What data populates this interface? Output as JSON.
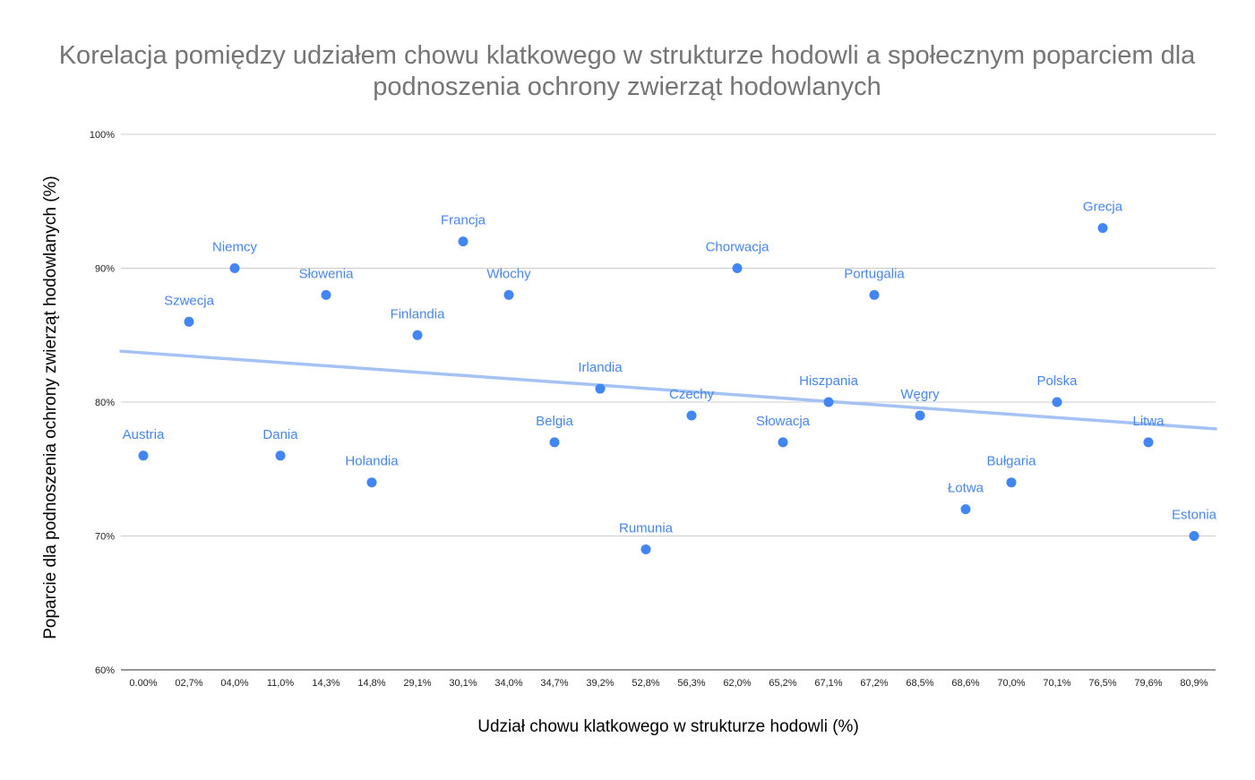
{
  "chart_data": {
    "type": "scatter",
    "title_lines": [
      "Korelacja pomiędzy udziałem chowu klatkowego w strukturze hodowli a społecznym poparciem dla",
      "podnoszenia ochrony zwierząt hodowlanych"
    ],
    "xlabel": "Udział chowu klatkowego w strukturze hodowli (%)",
    "ylabel": "Poparcie dla podnoszenia ochrony zwierząt hodowlanych (%)",
    "x_tick_labels": [
      "0.00%",
      "02,7%",
      "04,0%",
      "11,0%",
      "14,3%",
      "14,8%",
      "29,1%",
      "30,1%",
      "34,0%",
      "34,7%",
      "39,2%",
      "52,8%",
      "56,3%",
      "62,0%",
      "65,2%",
      "67,1%",
      "67,2%",
      "68,5%",
      "68,6%",
      "70,0%",
      "70,1%",
      "76,5%",
      "79,6%",
      "80,9%"
    ],
    "y_tick_labels": [
      "60%",
      "70%",
      "80%",
      "90%",
      "100%"
    ],
    "ylim": [
      60,
      100
    ],
    "y_ticks": [
      60,
      70,
      80,
      90,
      100
    ],
    "grid": true,
    "legend": "none",
    "trendline": {
      "start": 83.8,
      "end": 78.0
    },
    "points": [
      {
        "label": "Austria",
        "x": "0.00%",
        "y": 76
      },
      {
        "label": "Szwecja",
        "x": "02,7%",
        "y": 86
      },
      {
        "label": "Niemcy",
        "x": "04,0%",
        "y": 90
      },
      {
        "label": "Dania",
        "x": "11,0%",
        "y": 76
      },
      {
        "label": "Słowenia",
        "x": "14,3%",
        "y": 88
      },
      {
        "label": "Holandia",
        "x": "14,8%",
        "y": 74
      },
      {
        "label": "Finlandia",
        "x": "29,1%",
        "y": 85
      },
      {
        "label": "Francja",
        "x": "30,1%",
        "y": 92
      },
      {
        "label": "Włochy",
        "x": "34,0%",
        "y": 88
      },
      {
        "label": "Belgia",
        "x": "34,7%",
        "y": 77
      },
      {
        "label": "Irlandia",
        "x": "39,2%",
        "y": 81
      },
      {
        "label": "Rumunia",
        "x": "52,8%",
        "y": 69
      },
      {
        "label": "Czechy",
        "x": "56,3%",
        "y": 79
      },
      {
        "label": "Chorwacja",
        "x": "62,0%",
        "y": 90
      },
      {
        "label": "Słowacja",
        "x": "65,2%",
        "y": 77
      },
      {
        "label": "Hiszpania",
        "x": "67,1%",
        "y": 80
      },
      {
        "label": "Portugalia",
        "x": "67,2%",
        "y": 88
      },
      {
        "label": "Węgry",
        "x": "68,5%",
        "y": 79
      },
      {
        "label": "Łotwa",
        "x": "68,6%",
        "y": 72
      },
      {
        "label": "Bułgaria",
        "x": "70,0%",
        "y": 74
      },
      {
        "label": "Polska",
        "x": "70,1%",
        "y": 80
      },
      {
        "label": "Grecja",
        "x": "76,5%",
        "y": 93
      },
      {
        "label": "Litwa",
        "x": "79,6%",
        "y": 77
      },
      {
        "label": "Estonia",
        "x": "80,9%",
        "y": 70
      }
    ]
  },
  "colors": {
    "point": "#4285f4",
    "label": "#4a86e8",
    "trendline": "#a4c2f4",
    "title": "#757575",
    "grid": "#cccccc"
  }
}
